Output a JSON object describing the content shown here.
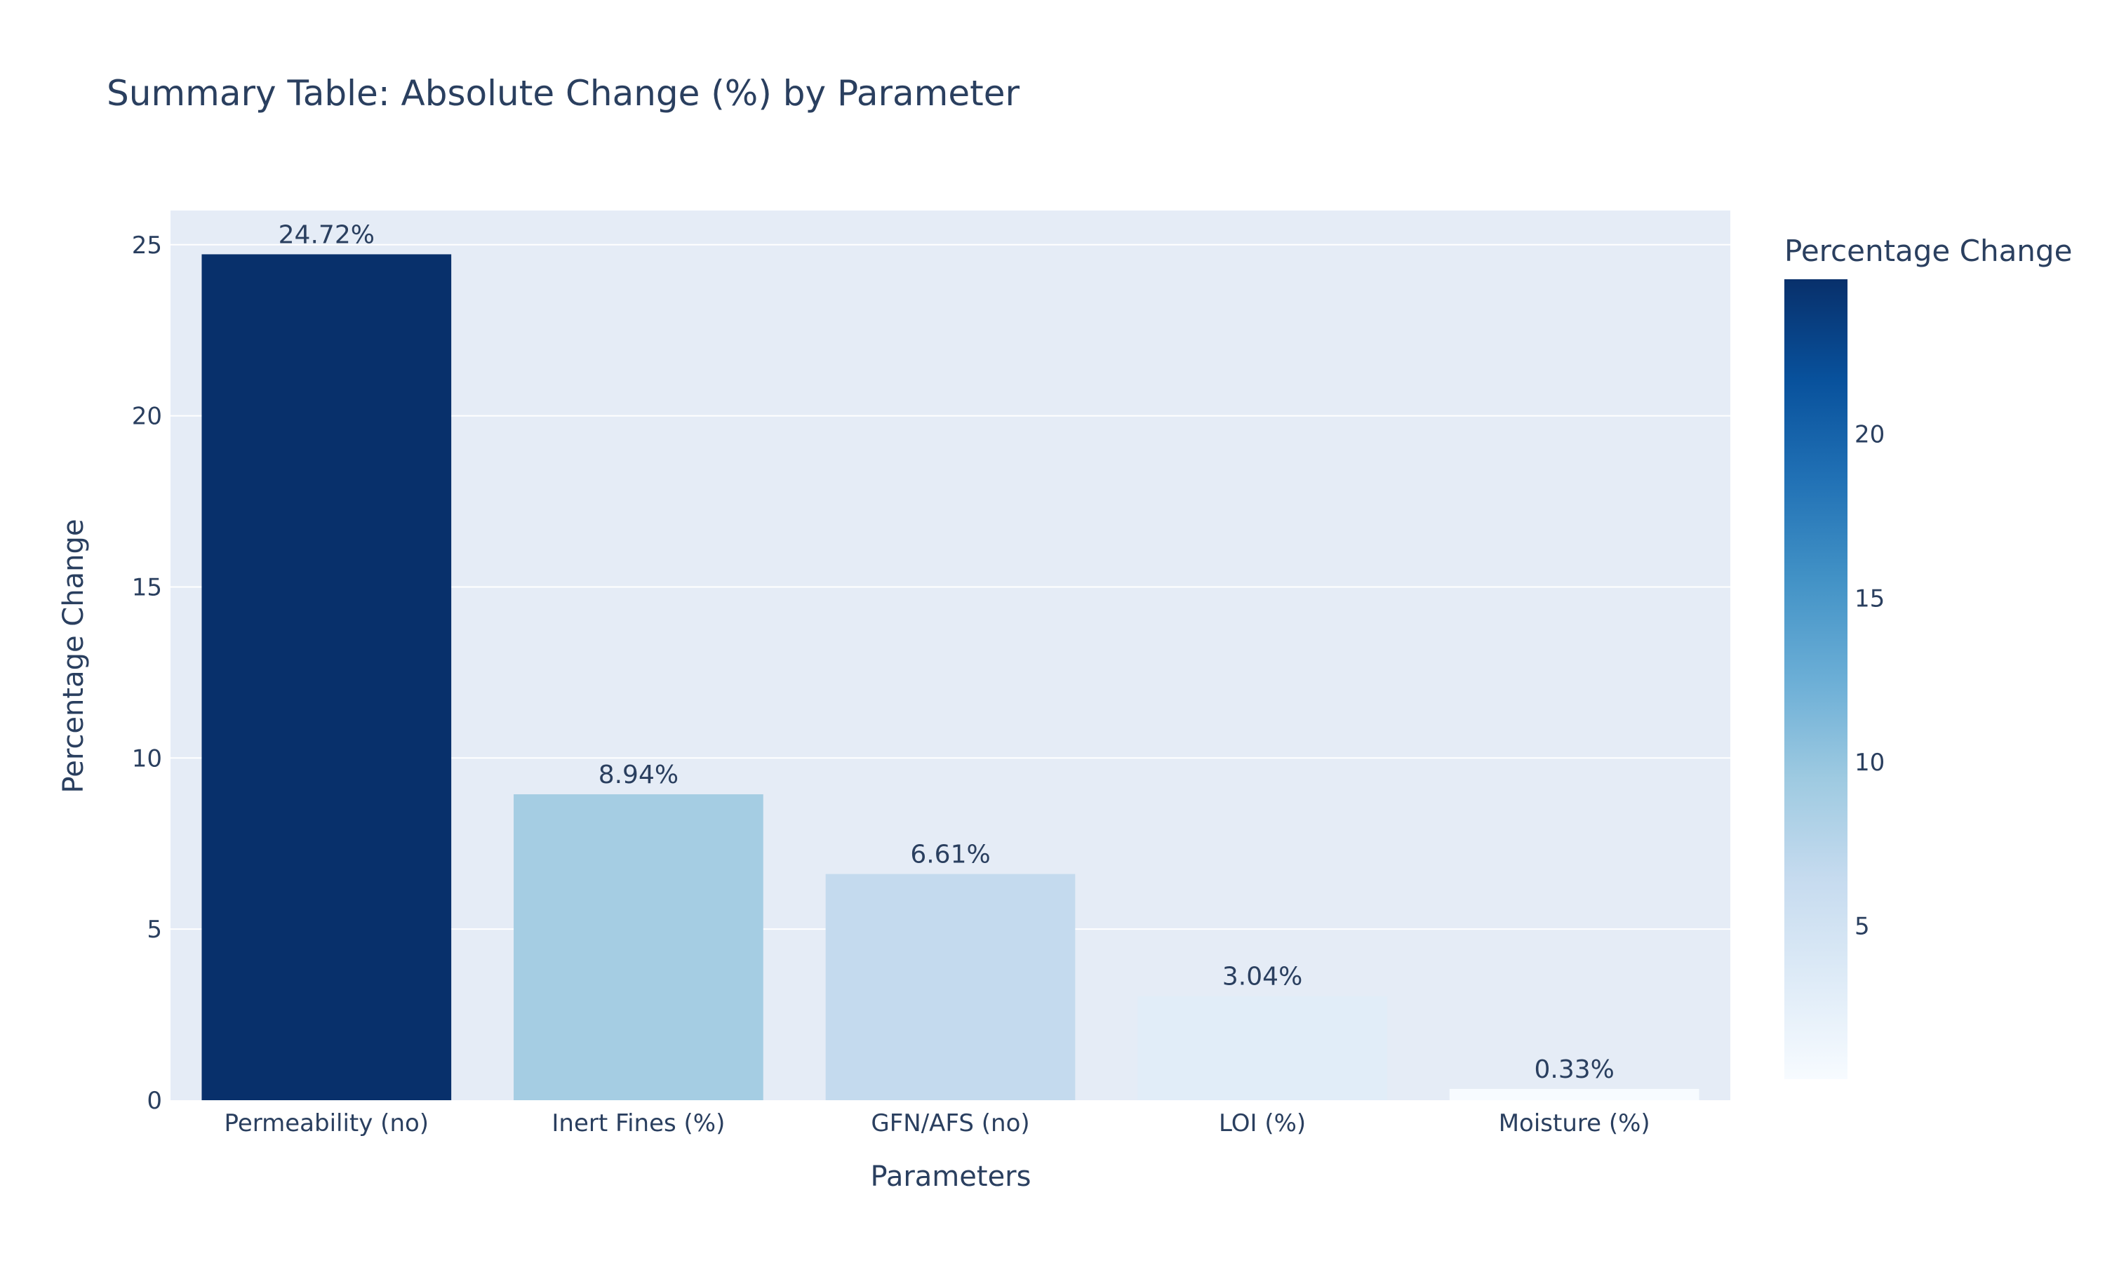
{
  "chart_data": {
    "type": "bar",
    "title": "Summary Table: Absolute Change (%) by Parameter",
    "xlabel": "Parameters",
    "ylabel": "Percentage Change",
    "categories": [
      "Permeability (no)",
      "Inert Fines (%)",
      "GFN/AFS (no)",
      "LOI (%)",
      "Moisture (%)"
    ],
    "values": [
      24.72,
      8.94,
      6.61,
      3.04,
      0.33
    ],
    "data_labels": [
      "24.72%",
      "8.94%",
      "6.61%",
      "3.04%",
      "0.33%"
    ],
    "ylim": [
      0,
      26
    ],
    "yticks": [
      0,
      5,
      10,
      15,
      20,
      25
    ],
    "grid": true,
    "colorbar": {
      "title": "Percentage Change",
      "colorscale": "Blues",
      "range": [
        0.33,
        24.72
      ],
      "ticks": [
        5,
        10,
        15,
        20
      ]
    }
  },
  "colors": {
    "plot_background": "#E5ECF6",
    "gridline": "#ffffff",
    "text": "#2a3f5f",
    "blues_scale": [
      "#f7fbff",
      "#deebf7",
      "#c6dbef",
      "#9ecae1",
      "#6baed6",
      "#4292c6",
      "#2171b5",
      "#08519c",
      "#08306b"
    ]
  }
}
